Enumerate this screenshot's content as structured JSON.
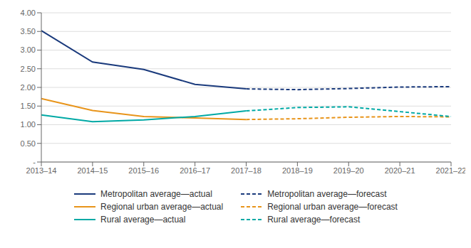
{
  "chart_data": {
    "type": "line",
    "categories": [
      "2013–14",
      "2014–15",
      "2015–16",
      "2016–17",
      "2017–18",
      "2018–19",
      "2019–20",
      "2020–21",
      "2021–22"
    ],
    "series": [
      {
        "name": "Metropolitan average—actual",
        "color": "#1a3a7c",
        "line_style": "solid",
        "values": [
          3.52,
          2.68,
          2.48,
          2.08,
          1.96,
          null,
          null,
          null,
          null
        ]
      },
      {
        "name": "Metropolitan average—forecast",
        "color": "#1a3a7c",
        "line_style": "dashed",
        "values": [
          null,
          null,
          null,
          null,
          1.96,
          1.94,
          1.97,
          2.01,
          2.02
        ]
      },
      {
        "name": "Regional urban average—actual",
        "color": "#e8941a",
        "line_style": "solid",
        "values": [
          1.7,
          1.38,
          1.22,
          1.18,
          1.14,
          null,
          null,
          null,
          null
        ]
      },
      {
        "name": "Regional urban average—forecast",
        "color": "#e8941a",
        "line_style": "dashed",
        "values": [
          null,
          null,
          null,
          null,
          1.14,
          1.16,
          1.2,
          1.22,
          1.21
        ]
      },
      {
        "name": "Rural average—actual",
        "color": "#00a9a5",
        "line_style": "solid",
        "values": [
          1.26,
          1.08,
          1.13,
          1.22,
          1.37,
          null,
          null,
          null,
          null
        ]
      },
      {
        "name": "Rural average—forecast",
        "color": "#00a9a5",
        "line_style": "dashed",
        "values": [
          null,
          null,
          null,
          null,
          1.37,
          1.46,
          1.48,
          1.35,
          1.22
        ]
      }
    ],
    "ylim": [
      0,
      4.0
    ],
    "yticks": [
      {
        "value": 0,
        "label": "-"
      },
      {
        "value": 0.5,
        "label": "0.50"
      },
      {
        "value": 1.0,
        "label": "1.00"
      },
      {
        "value": 1.5,
        "label": "1.50"
      },
      {
        "value": 2.0,
        "label": "2.00"
      },
      {
        "value": 2.5,
        "label": "2.50"
      },
      {
        "value": 3.0,
        "label": "3.00"
      },
      {
        "value": 3.5,
        "label": "3.50"
      },
      {
        "value": 4.0,
        "label": "4.00"
      }
    ],
    "grid": true,
    "legend": "bottom"
  }
}
